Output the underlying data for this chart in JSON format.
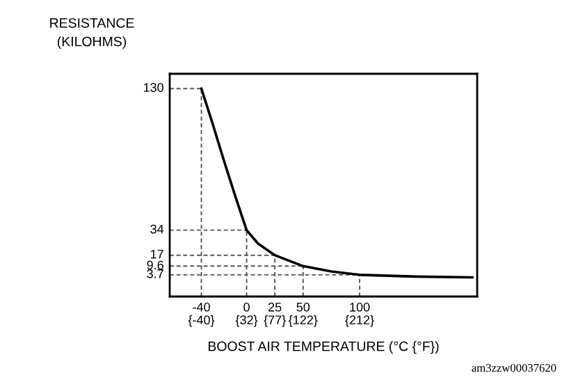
{
  "chart_data": {
    "type": "line",
    "ylabel": "RESISTANCE\n(KILOHMS)",
    "xlabel": "BOOST AIR TEMPERATURE (°C {°F})",
    "series": [
      {
        "color": "#000000",
        "x": [
          -40,
          -30,
          -20,
          -10,
          0,
          10,
          25,
          50,
          75,
          100,
          150,
          200
        ],
        "values": [
          130,
          106,
          81,
          57,
          34,
          25,
          17,
          9.6,
          6,
          3.7,
          2.5,
          2
        ]
      }
    ],
    "xlim": [
      -68,
      204
    ],
    "ylim": [
      -11,
      140
    ],
    "xticks": [
      -40,
      0,
      25,
      50,
      100
    ],
    "x2lim": [
      -90.4,
      399.2
    ],
    "x2ticks": [
      {
        "value": -40,
        "label": "{-40}"
      },
      {
        "value": 32,
        "label": "{32}"
      },
      {
        "value": 77,
        "label": "{77}"
      },
      {
        "value": 122,
        "label": "{122}"
      },
      {
        "value": 212,
        "label": "{212}"
      }
    ],
    "yticks": [
      130,
      34,
      17,
      9.6,
      3.7
    ],
    "ref_lines": [
      {
        "axis": "x",
        "value": -40,
        "line_style": "dashed"
      },
      {
        "axis": "x",
        "value": 0,
        "line_style": "dashed"
      },
      {
        "axis": "x",
        "value": 25,
        "line_style": "dashed"
      },
      {
        "axis": "x",
        "value": 50,
        "line_style": "dashed"
      },
      {
        "axis": "x",
        "value": 100,
        "line_style": "dashed"
      },
      {
        "axis": "y",
        "value": 130,
        "line_style": "dashed"
      },
      {
        "axis": "y",
        "value": 34,
        "line_style": "dashed"
      },
      {
        "axis": "y",
        "value": 17,
        "line_style": "dashed"
      },
      {
        "axis": "y",
        "value": 9.6,
        "line_style": "dashed"
      },
      {
        "axis": "y",
        "value": 3.7,
        "line_style": "dashed"
      }
    ],
    "annotations": [
      "am3zzw00037620"
    ],
    "grid": false,
    "legend": false
  }
}
